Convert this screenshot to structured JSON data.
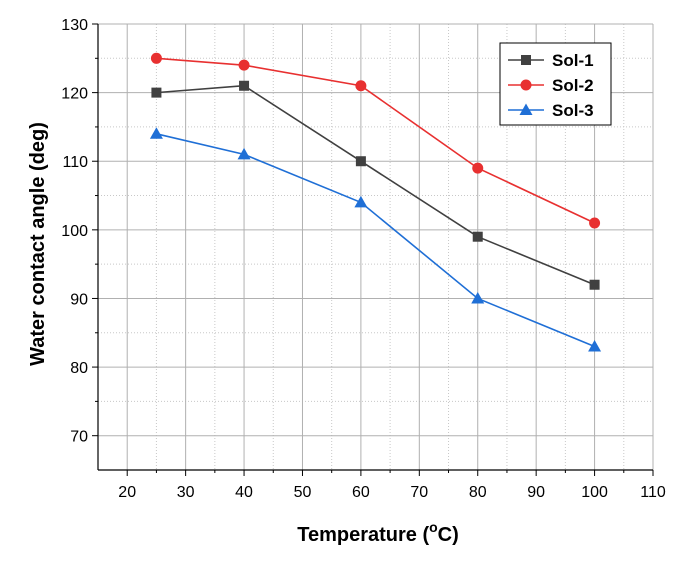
{
  "chart_data": {
    "type": "line",
    "title": "",
    "xlabel": "Temperature (",
    "xlabel_sup": "o",
    "xlabel_suffix": "C)",
    "ylabel": "Water contact angle (deg)",
    "xlim": [
      15,
      110
    ],
    "ylim": [
      65,
      130
    ],
    "x_ticks": [
      20,
      30,
      40,
      50,
      60,
      70,
      80,
      90,
      100,
      110
    ],
    "x_tick_labels": [
      "20",
      "30",
      "40",
      "50",
      "60",
      "70",
      "80",
      "90",
      "100",
      "110"
    ],
    "y_ticks": [
      70,
      80,
      90,
      100,
      110,
      120,
      130
    ],
    "y_tick_labels": [
      "70",
      "80",
      "90",
      "100",
      "110",
      "120",
      "130"
    ],
    "grid": true,
    "legend_position": "top-right",
    "x": [
      25,
      40,
      60,
      80,
      100
    ],
    "series": [
      {
        "name": "Sol-1",
        "values": [
          120,
          121,
          110,
          99,
          92
        ],
        "color": "#404040",
        "marker": "square"
      },
      {
        "name": "Sol-2",
        "values": [
          125,
          124,
          121,
          109,
          101
        ],
        "color": "#e83030",
        "marker": "circle"
      },
      {
        "name": "Sol-3",
        "values": [
          114,
          111,
          104,
          90,
          83
        ],
        "color": "#1f6fd6",
        "marker": "triangle"
      }
    ]
  }
}
